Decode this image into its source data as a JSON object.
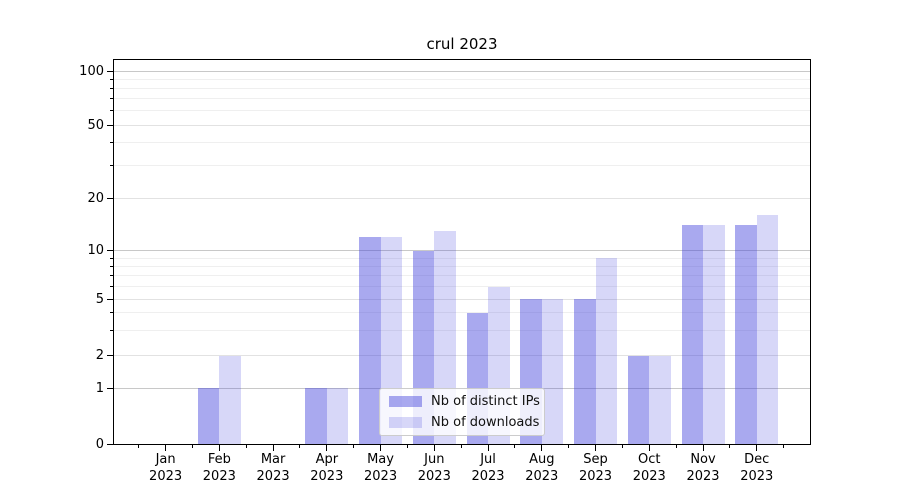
{
  "title": "crul 2023",
  "legend": {
    "items": [
      {
        "label": "Nb of distinct IPs"
      },
      {
        "label": "Nb of downloads"
      }
    ]
  },
  "x_axis": {
    "months": [
      "Jan",
      "Feb",
      "Mar",
      "Apr",
      "May",
      "Jun",
      "Jul",
      "Aug",
      "Sep",
      "Oct",
      "Nov",
      "Dec"
    ],
    "year": "2023"
  },
  "y_axis": {
    "tick_labels": [
      100,
      50,
      20,
      10,
      5,
      2,
      1,
      0
    ],
    "major_lines": [
      1,
      10,
      100
    ],
    "mid_lines": [
      2,
      5,
      20,
      50
    ],
    "minor_lines": [
      3,
      4,
      6,
      7,
      8,
      9,
      30,
      40,
      60,
      70,
      80,
      90
    ]
  },
  "colors": {
    "bar_base": "#4444dd",
    "bar_distinct_ips": "rgba(68,68,221,0.46)",
    "bar_distinct_ips_hex": "#a9a9ef",
    "bar_downloads": "rgba(68,68,221,0.21)",
    "bar_downloads_hex": "#d9d9f8",
    "grid_major": "#c8c8c8",
    "grid_mid": "#e2e2e2",
    "grid_minor": "#efefef",
    "spine": "#000000"
  },
  "chart_data": {
    "type": "bar",
    "title": "crul 2023",
    "categories": [
      "Jan 2023",
      "Feb 2023",
      "Mar 2023",
      "Apr 2023",
      "May 2023",
      "Jun 2023",
      "Jul 2023",
      "Aug 2023",
      "Sep 2023",
      "Oct 2023",
      "Nov 2023",
      "Dec 2023"
    ],
    "series": [
      {
        "name": "Nb of distinct IPs",
        "values": [
          0,
          1,
          0,
          1,
          12,
          10,
          4,
          5,
          5,
          2,
          14,
          14
        ]
      },
      {
        "name": "Nb of downloads",
        "values": [
          0,
          2,
          0,
          1,
          12,
          13,
          6,
          5,
          9,
          2,
          14,
          16
        ]
      }
    ],
    "y_scale": "log-like (compressed toward 0, linear below 1)",
    "y_ticks": [
      0,
      1,
      2,
      5,
      10,
      20,
      50,
      100
    ],
    "ylim": [
      0,
      130
    ],
    "xlabel": "",
    "ylabel": "",
    "grid": "horizontal major + minor lines",
    "legend_position": "lower center inside plot"
  }
}
